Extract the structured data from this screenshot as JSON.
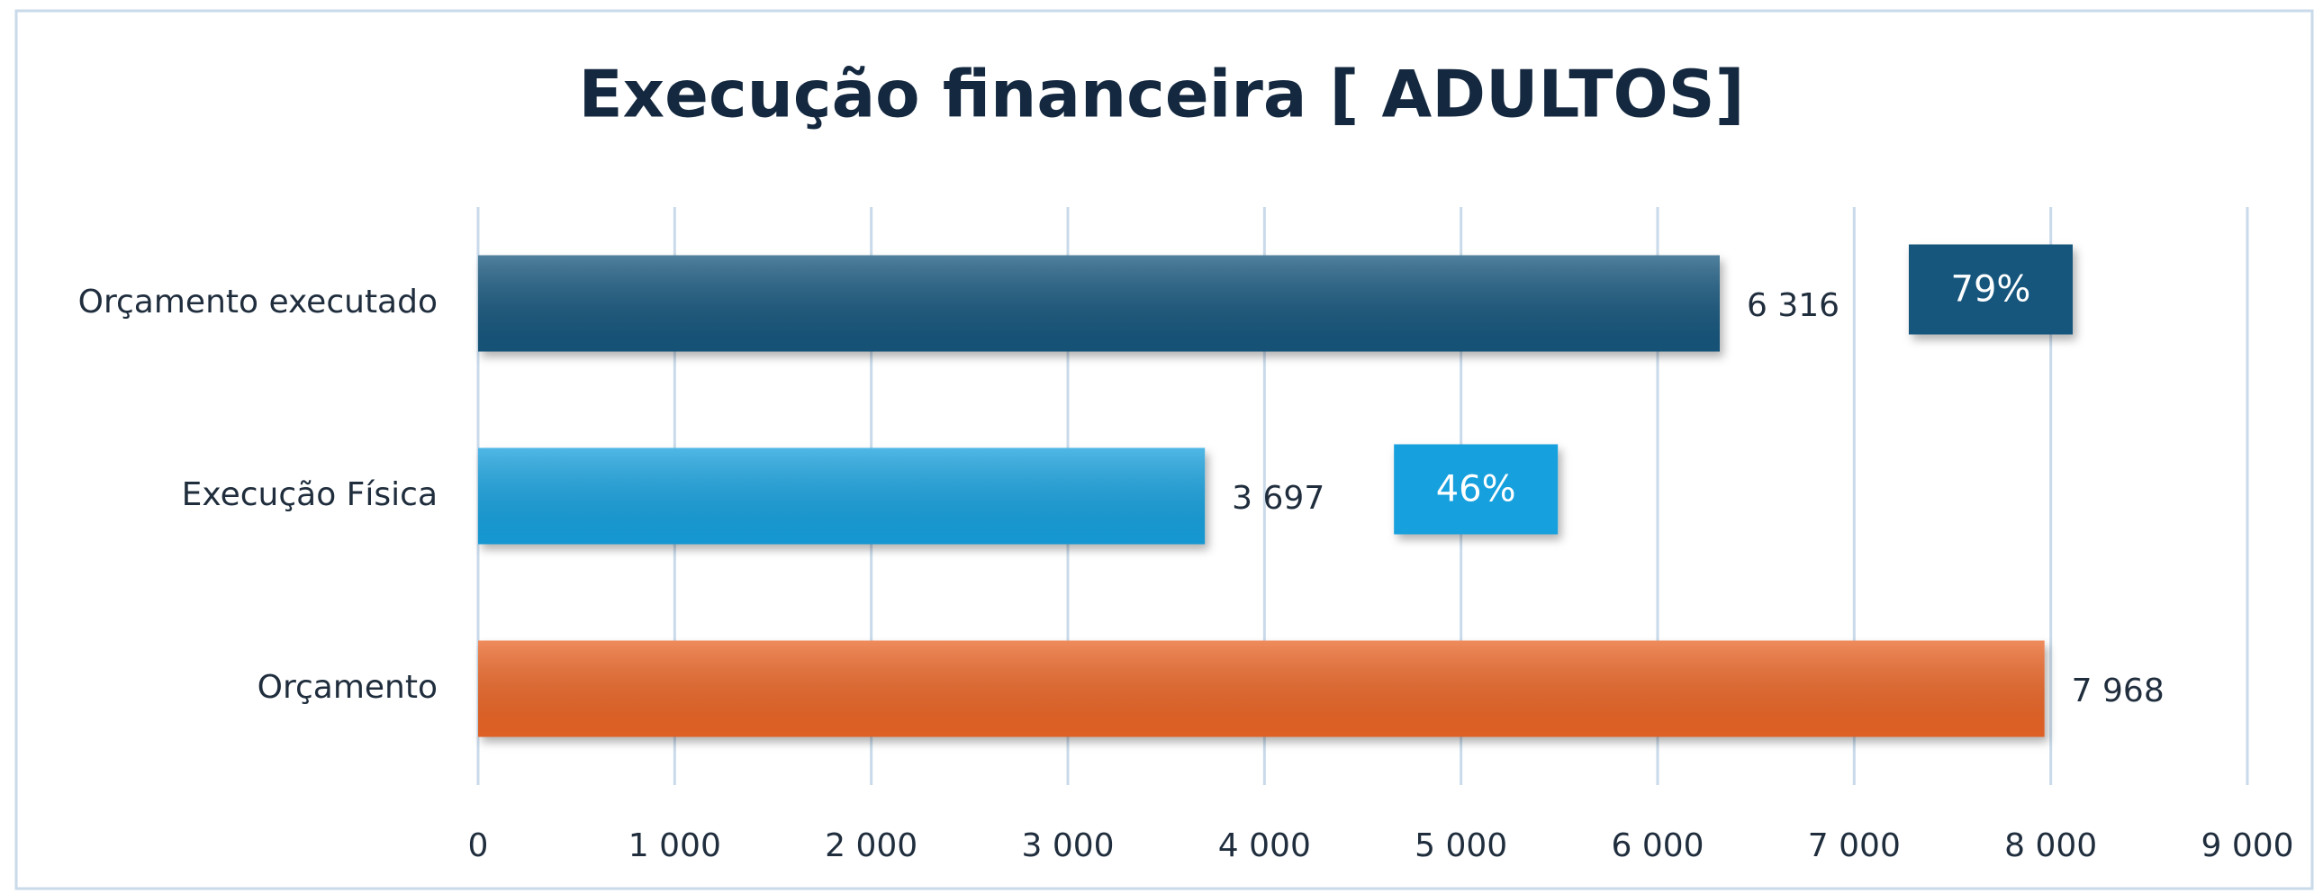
{
  "chart_data": {
    "type": "barh",
    "title": "Execução financeira [ ADULTOS]",
    "categories": [
      "Orçamento executado",
      "Execução Física",
      "Orçamento"
    ],
    "values": [
      6316,
      3697,
      7968
    ],
    "value_labels": [
      "6 316",
      "3 697",
      "7 968"
    ],
    "colors": [
      "#18577d",
      "#14a0dd",
      "#ea6528"
    ],
    "annotations": [
      "79%",
      "46%"
    ],
    "xlim": [
      0,
      9000
    ],
    "xticks": [
      0,
      {
        "value": 1000,
        "label": "1 000"
      },
      {
        "value": 2000,
        "label": "2 000"
      },
      {
        "value": 3000,
        "label": "3 000"
      },
      {
        "value": 4000,
        "label": "4 000"
      },
      {
        "value": 5000,
        "label": "5 000"
      },
      {
        "value": 6000,
        "label": "6 000"
      },
      {
        "value": 7000,
        "label": "7 000"
      },
      {
        "value": 8000,
        "label": "8 000"
      },
      {
        "value": 9000,
        "label": "9 000"
      }
    ],
    "grid": true
  }
}
